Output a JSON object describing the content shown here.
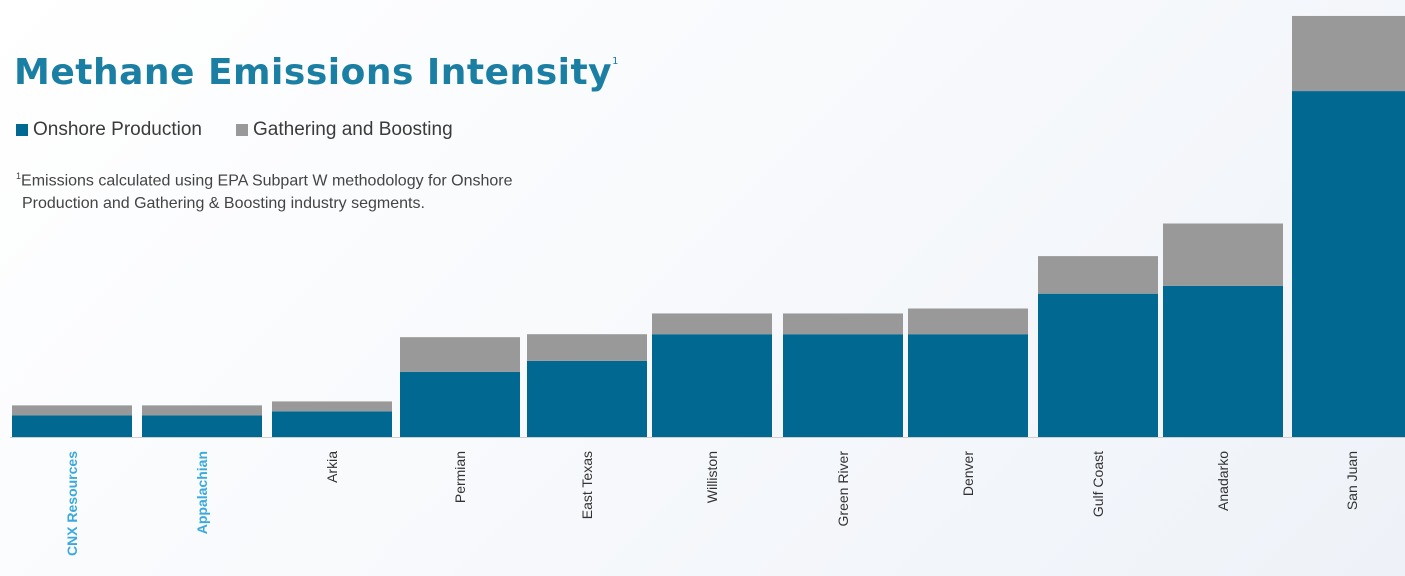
{
  "title": "Methane Emissions Intensity",
  "title_marker": "1",
  "legend": [
    {
      "label": "Onshore Production",
      "color": "#006891"
    },
    {
      "label": "Gathering and Boosting",
      "color": "#999999"
    }
  ],
  "footnote": {
    "marker": "1",
    "line1": "Emissions calculated using EPA Subpart W methodology for Onshore",
    "line2": "Production and Gathering & Boosting industry segments."
  },
  "colors": {
    "onshore": "#006891",
    "gathering": "#999999",
    "highlight_label": "#3aa9dc",
    "label": "#333333",
    "baseline": "#cfcfcf"
  },
  "chart_data": {
    "type": "bar",
    "stacked": true,
    "categories": [
      "CNX Resources",
      "Appalachian",
      "Arkia",
      "Permian",
      "East Texas",
      "Williston",
      "Green River",
      "Denver",
      "Gulf Coast",
      "Anadarko",
      "San Juan"
    ],
    "highlighted_categories": [
      "CNX Resources",
      "Appalachian"
    ],
    "series": [
      {
        "name": "Onshore Production",
        "values": [
          22,
          22,
          26,
          66,
          77,
          104,
          104,
          104,
          145,
          153,
          350
        ]
      },
      {
        "name": "Gathering and Boosting",
        "values": [
          10,
          10,
          10,
          35,
          27,
          21,
          21,
          26,
          38,
          63,
          76
        ]
      }
    ],
    "ylim": [
      0,
      430
    ],
    "grid": false,
    "legend_position": "top-left"
  }
}
